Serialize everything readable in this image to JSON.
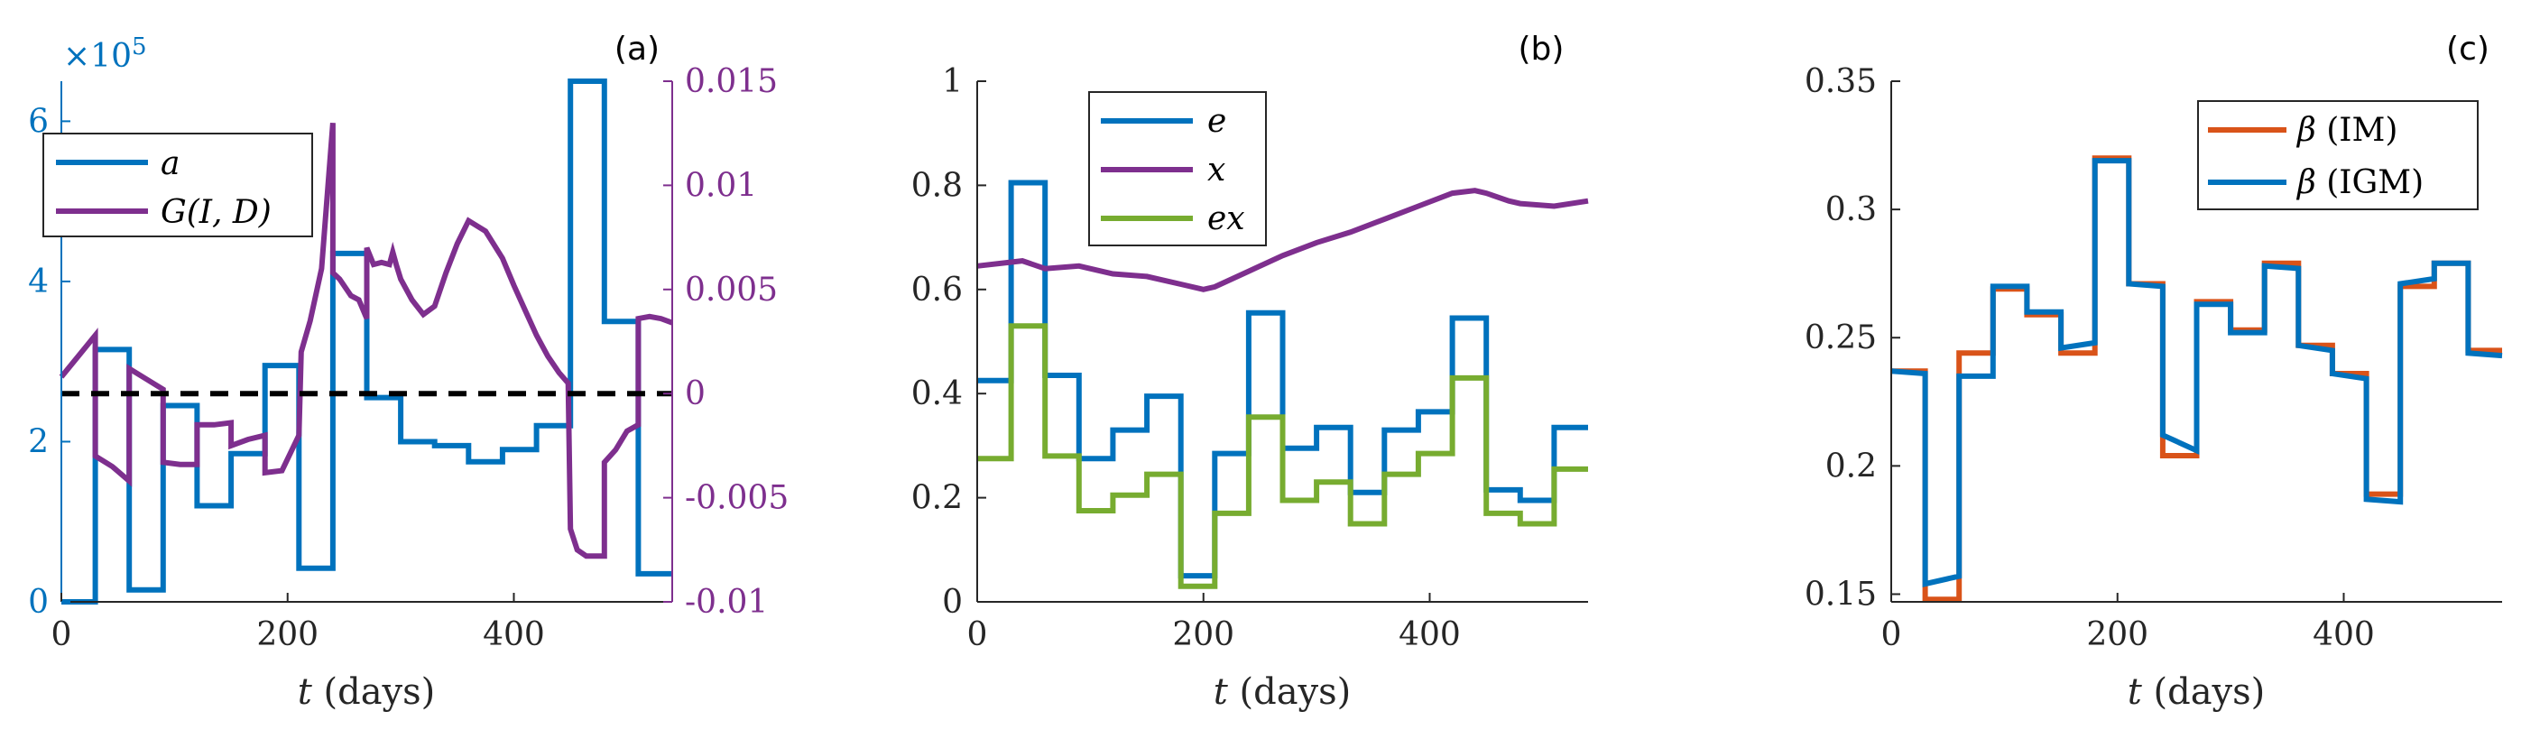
{
  "chart_data": [
    {
      "type": "line",
      "panel_label": "(a)",
      "xlabel": {
        "var": "t",
        "rest": " (days)"
      },
      "xlim": [
        0,
        540
      ],
      "xticks": [
        0,
        200,
        400
      ],
      "ylim_left": [
        0,
        6.5
      ],
      "yticks_left": [
        "0",
        "2",
        "4",
        "6"
      ],
      "left_exponent": {
        "prefix": "×10",
        "power": "5"
      },
      "ylim_right": [
        -0.01,
        0.015
      ],
      "yticks_right": [
        -0.01,
        -0.005,
        0,
        0.005,
        0.01,
        0.015
      ],
      "ytick_labels_right": [
        "-0.01",
        "-0.005",
        "0",
        "0.005",
        "0.01",
        "0.015"
      ],
      "reference_line": {
        "y_right": 0,
        "style": "dashed",
        "color": "#000000"
      },
      "legend": {
        "position": "top-left",
        "entries": [
          {
            "label": "a",
            "color": "#0072BD"
          },
          {
            "label": "G(I, D)",
            "color": "#7E2F8E"
          }
        ]
      },
      "series": [
        {
          "name": "a",
          "axis": "left",
          "color": "#0072BD",
          "x": [
            0,
            30,
            30,
            60,
            60,
            90,
            90,
            120,
            120,
            150,
            150,
            180,
            180,
            210,
            210,
            240,
            240,
            270,
            270,
            300,
            300,
            330,
            330,
            360,
            360,
            390,
            390,
            420,
            420,
            450,
            450,
            480,
            480,
            510,
            510,
            540
          ],
          "values": [
            0,
            0,
            3.15,
            3.15,
            0.15,
            0.15,
            2.45,
            2.45,
            1.2,
            1.2,
            1.85,
            1.85,
            2.95,
            2.95,
            0.42,
            0.42,
            4.35,
            4.35,
            2.55,
            2.55,
            2.0,
            2.0,
            1.95,
            1.95,
            1.75,
            1.75,
            1.9,
            1.9,
            2.2,
            2.2,
            6.5,
            6.5,
            3.5,
            3.5,
            0.35,
            0.35
          ]
        },
        {
          "name": "G(I, D)",
          "axis": "right",
          "color": "#7E2F8E",
          "x": [
            0,
            15,
            30,
            30,
            45,
            60,
            60,
            75,
            90,
            90,
            105,
            120,
            120,
            135,
            150,
            150,
            165,
            180,
            180,
            195,
            210,
            212,
            220,
            230,
            240,
            240,
            246,
            256,
            263,
            270,
            270,
            276,
            283,
            290,
            293,
            296,
            300,
            310,
            320,
            330,
            340,
            350,
            360,
            375,
            390,
            400,
            410,
            420,
            430,
            440,
            448,
            450,
            456,
            464,
            480,
            480,
            490,
            500,
            510,
            510,
            520,
            530,
            540
          ],
          "values": [
            0.0008,
            0.0018,
            0.0028,
            -0.003,
            -0.0035,
            -0.0042,
            0.0012,
            0.0007,
            0.0002,
            -0.0033,
            -0.0034,
            -0.0034,
            -0.0015,
            -0.0015,
            -0.0014,
            -0.0025,
            -0.0022,
            -0.002,
            -0.0038,
            -0.0037,
            -0.002,
            0.002,
            0.0035,
            0.006,
            0.013,
            0.0058,
            0.0055,
            0.0047,
            0.0045,
            0.0036,
            0.007,
            0.0062,
            0.0063,
            0.0062,
            0.0068,
            0.0062,
            0.0055,
            0.0045,
            0.0038,
            0.0042,
            0.0058,
            0.0072,
            0.0083,
            0.0078,
            0.0065,
            0.0052,
            0.004,
            0.0028,
            0.0018,
            0.001,
            0.0005,
            -0.0065,
            -0.0075,
            -0.0078,
            -0.0078,
            -0.0033,
            -0.0027,
            -0.0018,
            -0.0015,
            0.0036,
            0.0037,
            0.0036,
            0.0034
          ]
        }
      ]
    },
    {
      "type": "line",
      "panel_label": "(b)",
      "xlabel": {
        "var": "t",
        "rest": " (days)"
      },
      "xlim": [
        0,
        540
      ],
      "xticks": [
        0,
        200,
        400
      ],
      "ylim": [
        0,
        1
      ],
      "yticks": [
        0,
        0.2,
        0.4,
        0.6,
        0.8,
        1
      ],
      "ytick_labels": [
        "0",
        "0.2",
        "0.4",
        "0.6",
        "0.8",
        "1"
      ],
      "legend": {
        "position": "top-left",
        "entries": [
          {
            "label": "e",
            "color": "#0072BD"
          },
          {
            "label": "x",
            "color": "#7E2F8E"
          },
          {
            "label": "ex",
            "color": "#77AC30"
          }
        ]
      },
      "series": [
        {
          "name": "e",
          "color": "#0072BD",
          "x": [
            0,
            30,
            30,
            60,
            60,
            90,
            90,
            120,
            120,
            150,
            150,
            180,
            180,
            210,
            210,
            240,
            240,
            270,
            270,
            300,
            300,
            330,
            330,
            360,
            360,
            390,
            390,
            420,
            420,
            450,
            450,
            480,
            480,
            510,
            510,
            540
          ],
          "values": [
            0.425,
            0.425,
            0.805,
            0.805,
            0.435,
            0.435,
            0.275,
            0.275,
            0.33,
            0.33,
            0.395,
            0.395,
            0.05,
            0.05,
            0.285,
            0.285,
            0.555,
            0.555,
            0.295,
            0.295,
            0.335,
            0.335,
            0.21,
            0.21,
            0.33,
            0.33,
            0.365,
            0.365,
            0.545,
            0.545,
            0.215,
            0.215,
            0.195,
            0.195,
            0.335,
            0.335
          ]
        },
        {
          "name": "x",
          "color": "#7E2F8E",
          "x": [
            0,
            40,
            60,
            90,
            120,
            150,
            180,
            200,
            210,
            240,
            270,
            300,
            330,
            360,
            390,
            420,
            440,
            450,
            470,
            480,
            510,
            540
          ],
          "values": [
            0.645,
            0.655,
            0.64,
            0.645,
            0.63,
            0.625,
            0.61,
            0.6,
            0.605,
            0.635,
            0.665,
            0.69,
            0.71,
            0.735,
            0.76,
            0.785,
            0.79,
            0.785,
            0.77,
            0.765,
            0.76,
            0.77
          ]
        },
        {
          "name": "ex",
          "color": "#77AC30",
          "x": [
            0,
            30,
            30,
            60,
            60,
            90,
            90,
            120,
            120,
            150,
            150,
            180,
            180,
            210,
            210,
            240,
            240,
            270,
            270,
            300,
            300,
            330,
            330,
            360,
            360,
            390,
            390,
            420,
            420,
            450,
            450,
            480,
            480,
            510,
            510,
            540
          ],
          "values": [
            0.275,
            0.275,
            0.53,
            0.53,
            0.28,
            0.28,
            0.175,
            0.175,
            0.205,
            0.205,
            0.245,
            0.245,
            0.03,
            0.03,
            0.17,
            0.17,
            0.355,
            0.355,
            0.195,
            0.195,
            0.23,
            0.23,
            0.15,
            0.15,
            0.245,
            0.245,
            0.285,
            0.285,
            0.43,
            0.43,
            0.17,
            0.17,
            0.15,
            0.15,
            0.255,
            0.255
          ]
        }
      ]
    },
    {
      "type": "line",
      "panel_label": "(c)",
      "xlabel": {
        "var": "t",
        "rest": " (days)"
      },
      "xlim": [
        0,
        540
      ],
      "xticks": [
        0,
        200,
        400
      ],
      "ylim": [
        0.147,
        0.35
      ],
      "yticks": [
        0.15,
        0.2,
        0.25,
        0.3,
        0.35
      ],
      "ytick_labels": [
        "0.15",
        "0.2",
        "0.25",
        "0.3",
        "0.35"
      ],
      "legend": {
        "position": "top-right",
        "entries": [
          {
            "label": "β",
            "rest": " (IM)",
            "color": "#D95319"
          },
          {
            "label": "β",
            "rest": " (IGM)",
            "color": "#0072BD"
          }
        ]
      },
      "series": [
        {
          "name": "β (IM)",
          "color": "#D95319",
          "x": [
            0,
            30,
            30,
            60,
            60,
            90,
            90,
            120,
            120,
            150,
            150,
            180,
            180,
            210,
            210,
            240,
            240,
            270,
            270,
            300,
            300,
            330,
            330,
            360,
            360,
            390,
            390,
            420,
            420,
            450,
            450,
            480,
            480,
            510,
            510,
            540
          ],
          "values": [
            0.237,
            0.237,
            0.148,
            0.148,
            0.244,
            0.244,
            0.269,
            0.269,
            0.259,
            0.259,
            0.244,
            0.244,
            0.32,
            0.32,
            0.271,
            0.271,
            0.204,
            0.204,
            0.264,
            0.264,
            0.253,
            0.253,
            0.279,
            0.279,
            0.247,
            0.247,
            0.236,
            0.236,
            0.189,
            0.189,
            0.27,
            0.27,
            0.279,
            0.279,
            0.245,
            0.245
          ]
        },
        {
          "name": "β (IGM)",
          "color": "#0072BD",
          "x": [
            0,
            30,
            30,
            60,
            60,
            90,
            90,
            120,
            120,
            150,
            150,
            180,
            180,
            210,
            210,
            240,
            240,
            270,
            270,
            300,
            300,
            330,
            330,
            360,
            360,
            390,
            390,
            420,
            420,
            450,
            450,
            480,
            480,
            510,
            510,
            540
          ],
          "values": [
            0.237,
            0.236,
            0.154,
            0.157,
            0.235,
            0.235,
            0.27,
            0.27,
            0.26,
            0.26,
            0.246,
            0.248,
            0.319,
            0.319,
            0.271,
            0.27,
            0.212,
            0.206,
            0.263,
            0.263,
            0.252,
            0.252,
            0.278,
            0.277,
            0.247,
            0.245,
            0.236,
            0.234,
            0.187,
            0.186,
            0.271,
            0.273,
            0.279,
            0.279,
            0.244,
            0.243
          ]
        }
      ]
    }
  ]
}
